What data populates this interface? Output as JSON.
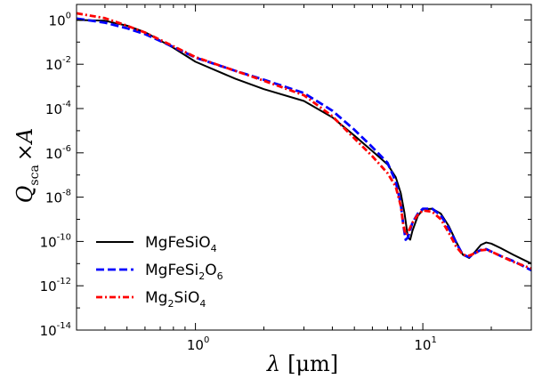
{
  "chart_data": {
    "type": "line",
    "xscale": "log",
    "yscale": "log",
    "xlim": [
      0.3,
      30
    ],
    "ylim": [
      1e-14,
      5
    ],
    "x_ticks": [
      {
        "value": 1,
        "base": "10",
        "exp": "0"
      },
      {
        "value": 10,
        "base": "10",
        "exp": "1"
      }
    ],
    "y_ticks": [
      {
        "value": 1,
        "base": "10",
        "exp": "0"
      },
      {
        "value": 0.01,
        "base": "10",
        "exp": "-2"
      },
      {
        "value": 0.0001,
        "base": "10",
        "exp": "-4"
      },
      {
        "value": 1e-06,
        "base": "10",
        "exp": "-6"
      },
      {
        "value": 1e-08,
        "base": "10",
        "exp": "-8"
      },
      {
        "value": 1e-10,
        "base": "10",
        "exp": "-10"
      },
      {
        "value": 1e-12,
        "base": "10",
        "exp": "-12"
      },
      {
        "value": 1e-14,
        "base": "10",
        "exp": "-14"
      }
    ],
    "xlabel": {
      "symbol": "λ",
      "unit": "[μm]"
    },
    "ylabel": {
      "main": "Q",
      "sub": "sca",
      "rest": "×A"
    },
    "legend_position": "lower-left",
    "series": [
      {
        "name": "MgFeSiO4",
        "label_parts": [
          {
            "t": "MgFeSiO",
            "sub": false
          },
          {
            "t": "4",
            "sub": true
          }
        ],
        "color": "#000000",
        "style": "solid",
        "points": [
          [
            0.3,
            1.0
          ],
          [
            0.4,
            0.92
          ],
          [
            0.5,
            0.55
          ],
          [
            0.6,
            0.28
          ],
          [
            0.8,
            0.055
          ],
          [
            1.0,
            0.013
          ],
          [
            1.5,
            0.0022
          ],
          [
            2.0,
            0.00075
          ],
          [
            3.0,
            0.00022
          ],
          [
            4.0,
            4e-05
          ],
          [
            5.0,
            6e-06
          ],
          [
            6.0,
            1.2e-06
          ],
          [
            7.0,
            3e-07
          ],
          [
            7.6,
            8e-08
          ],
          [
            8.0,
            1.5e-08
          ],
          [
            8.3,
            2e-09
          ],
          [
            8.6,
            1.5e-10
          ],
          [
            8.8,
            1.2e-10
          ],
          [
            9.0,
            3e-10
          ],
          [
            9.5,
            1.4e-09
          ],
          [
            10.0,
            2.8e-09
          ],
          [
            11.0,
            3e-09
          ],
          [
            12.0,
            1.8e-09
          ],
          [
            13.0,
            5e-10
          ],
          [
            14.0,
            1e-10
          ],
          [
            15.0,
            2.5e-11
          ],
          [
            16.0,
            1.8e-11
          ],
          [
            17.0,
            3.5e-11
          ],
          [
            18.0,
            7e-11
          ],
          [
            19.0,
            9e-11
          ],
          [
            20.0,
            8e-11
          ],
          [
            22.0,
            5e-11
          ],
          [
            25.0,
            2.5e-11
          ],
          [
            30.0,
            1e-11
          ]
        ]
      },
      {
        "name": "MgFeSi2O6",
        "label_parts": [
          {
            "t": "MgFeSi",
            "sub": false
          },
          {
            "t": "2",
            "sub": true
          },
          {
            "t": "O",
            "sub": false
          },
          {
            "t": "6",
            "sub": true
          }
        ],
        "color": "#0000ff",
        "style": "dashed",
        "points": [
          [
            0.3,
            1.15
          ],
          [
            0.4,
            0.75
          ],
          [
            0.5,
            0.42
          ],
          [
            0.6,
            0.23
          ],
          [
            0.8,
            0.06
          ],
          [
            1.0,
            0.02
          ],
          [
            1.5,
            0.005
          ],
          [
            2.0,
            0.002
          ],
          [
            3.0,
            0.0005
          ],
          [
            4.0,
            8e-05
          ],
          [
            5.0,
            1.1e-05
          ],
          [
            6.0,
            1.8e-06
          ],
          [
            7.0,
            3.5e-07
          ],
          [
            7.6,
            5e-08
          ],
          [
            8.0,
            5e-09
          ],
          [
            8.2,
            6e-10
          ],
          [
            8.4,
            1.2e-10
          ],
          [
            8.6,
            1.5e-10
          ],
          [
            9.0,
            7e-10
          ],
          [
            9.5,
            1.8e-09
          ],
          [
            10.0,
            3e-09
          ],
          [
            11.0,
            3e-09
          ],
          [
            12.0,
            1.5e-09
          ],
          [
            13.0,
            4e-10
          ],
          [
            14.0,
            9e-11
          ],
          [
            15.0,
            2.5e-11
          ],
          [
            16.0,
            2e-11
          ],
          [
            17.0,
            3e-11
          ],
          [
            18.0,
            4.2e-11
          ],
          [
            19.0,
            4.5e-11
          ],
          [
            20.0,
            3.5e-11
          ],
          [
            22.0,
            2.2e-11
          ],
          [
            25.0,
            1.3e-11
          ],
          [
            30.0,
            5e-12
          ]
        ]
      },
      {
        "name": "Mg2SiO4",
        "label_parts": [
          {
            "t": "Mg",
            "sub": false
          },
          {
            "t": "2",
            "sub": true
          },
          {
            "t": "SiO",
            "sub": false
          },
          {
            "t": "4",
            "sub": true
          }
        ],
        "color": "#ff0000",
        "style": "dashdot",
        "points": [
          [
            0.3,
            2.0
          ],
          [
            0.4,
            1.2
          ],
          [
            0.5,
            0.55
          ],
          [
            0.6,
            0.27
          ],
          [
            0.8,
            0.065
          ],
          [
            1.0,
            0.021
          ],
          [
            1.5,
            0.005
          ],
          [
            2.0,
            0.0018
          ],
          [
            3.0,
            0.0004
          ],
          [
            4.0,
            4.5e-05
          ],
          [
            5.0,
            4.5e-06
          ],
          [
            6.0,
            7e-07
          ],
          [
            7.0,
            1.2e-07
          ],
          [
            7.6,
            3e-08
          ],
          [
            8.0,
            4e-09
          ],
          [
            8.2,
            6e-10
          ],
          [
            8.4,
            2e-10
          ],
          [
            8.6,
            2.5e-10
          ],
          [
            9.0,
            7e-10
          ],
          [
            9.5,
            1.6e-09
          ],
          [
            10.0,
            2.5e-09
          ],
          [
            11.0,
            2.2e-09
          ],
          [
            12.0,
            1e-09
          ],
          [
            13.0,
            2.5e-10
          ],
          [
            14.0,
            6e-11
          ],
          [
            15.0,
            2.5e-11
          ],
          [
            16.0,
            2.3e-11
          ],
          [
            17.0,
            3e-11
          ],
          [
            18.0,
            4e-11
          ],
          [
            19.0,
            4.2e-11
          ],
          [
            20.0,
            3.5e-11
          ],
          [
            22.0,
            2.2e-11
          ],
          [
            25.0,
            1.2e-11
          ],
          [
            30.0,
            6e-12
          ]
        ]
      }
    ]
  }
}
